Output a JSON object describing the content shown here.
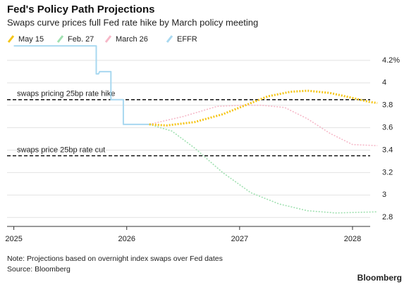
{
  "chart_data": {
    "type": "line",
    "title": "Fed's Policy Path Projections",
    "subtitle": "Swaps curve prices full Fed rate hike by March policy meeting",
    "series": [
      {
        "name": "May 15",
        "color": "#f5c518",
        "x": [
          2026.2,
          2026.35,
          2026.6,
          2026.85,
          2027.05,
          2027.25,
          2027.45,
          2027.6,
          2027.8,
          2027.98,
          2028.15,
          2028.22
        ],
        "values": [
          3.63,
          3.62,
          3.65,
          3.72,
          3.8,
          3.88,
          3.92,
          3.93,
          3.91,
          3.87,
          3.83,
          3.82
        ]
      },
      {
        "name": "Feb. 27",
        "color": "#9fe0b0",
        "x": [
          2026.2,
          2026.4,
          2026.6,
          2026.85,
          2027.1,
          2027.35,
          2027.6,
          2027.85,
          2028.22
        ],
        "values": [
          3.63,
          3.57,
          3.42,
          3.2,
          3.02,
          2.92,
          2.86,
          2.84,
          2.85
        ]
      },
      {
        "name": "March 26",
        "color": "#f6b8c8",
        "x": [
          2026.2,
          2026.5,
          2026.8,
          2027.0,
          2027.2,
          2027.4,
          2027.6,
          2027.8,
          2028.0,
          2028.22
        ],
        "values": [
          3.63,
          3.7,
          3.79,
          3.8,
          3.8,
          3.78,
          3.68,
          3.55,
          3.45,
          3.44
        ]
      },
      {
        "name": "EFFR",
        "color": "#a8d8f0",
        "x": [
          2025.0,
          2025.73,
          2025.73,
          2025.75,
          2025.76,
          2025.86,
          2025.86,
          2025.97,
          2025.97,
          2026.22
        ],
        "values": [
          4.33,
          4.33,
          4.08,
          4.08,
          4.1,
          4.1,
          3.85,
          3.85,
          3.63,
          3.63
        ]
      }
    ],
    "annotations": [
      {
        "text": "swaps pricing 25bp rate hike",
        "y": 3.85
      },
      {
        "text": "swaps price 25bp rate cut",
        "y": 3.35
      }
    ],
    "xlim": [
      2024.94,
      2028.25
    ],
    "xticks": [
      2025,
      2026,
      2027,
      2028
    ],
    "ylim": [
      2.72,
      4.35
    ],
    "yticks": [
      {
        "value": 4.2,
        "label": "4.2%"
      },
      4.0,
      3.8,
      3.6,
      3.4,
      3.2,
      3.0,
      2.8
    ],
    "grid": true,
    "note": "Note: Projections based on overnight index swaps over Fed dates",
    "source": "Source: Bloomberg",
    "brand": "Bloomberg"
  }
}
